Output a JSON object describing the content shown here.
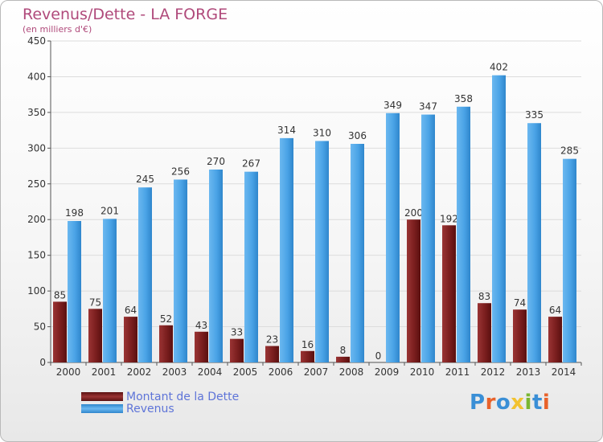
{
  "header": {
    "title": "Revenus/Dette - LA FORGE",
    "subtitle": "(en milliers d'€)"
  },
  "legend": {
    "debt_label": "Montant de la Dette",
    "revenue_label": "Revenus"
  },
  "logo": {
    "text": "Proxiti",
    "letter_colors": [
      "#3a8fd6",
      "#e8622a",
      "#3a8fd6",
      "#f2c230",
      "#7ab631",
      "#3a8fd6",
      "#e8622a"
    ]
  },
  "colors": {
    "debt": "#7a1e1e",
    "revenue": "#4aa3e6",
    "title": "#b04a7b",
    "legend_text": "#5e74d8"
  },
  "chart_data": {
    "type": "bar",
    "title": "Revenus/Dette - LA FORGE",
    "subtitle": "(en milliers d'€)",
    "categories": [
      "2000",
      "2001",
      "2002",
      "2003",
      "2004",
      "2005",
      "2006",
      "2007",
      "2008",
      "2009",
      "2010",
      "2011",
      "2012",
      "2013",
      "2014"
    ],
    "series": [
      {
        "name": "Montant de la Dette",
        "values": [
          85,
          75,
          64,
          52,
          43,
          33,
          23,
          16,
          8,
          0,
          200,
          192,
          83,
          74,
          64
        ]
      },
      {
        "name": "Revenus",
        "values": [
          198,
          201,
          245,
          256,
          270,
          267,
          314,
          310,
          306,
          349,
          347,
          358,
          402,
          335,
          285
        ]
      }
    ],
    "ylim": [
      0,
      450
    ],
    "yticks": [
      0,
      50,
      100,
      150,
      200,
      250,
      300,
      350,
      400,
      450
    ],
    "grid": true,
    "legend_position": "bottom-left"
  }
}
